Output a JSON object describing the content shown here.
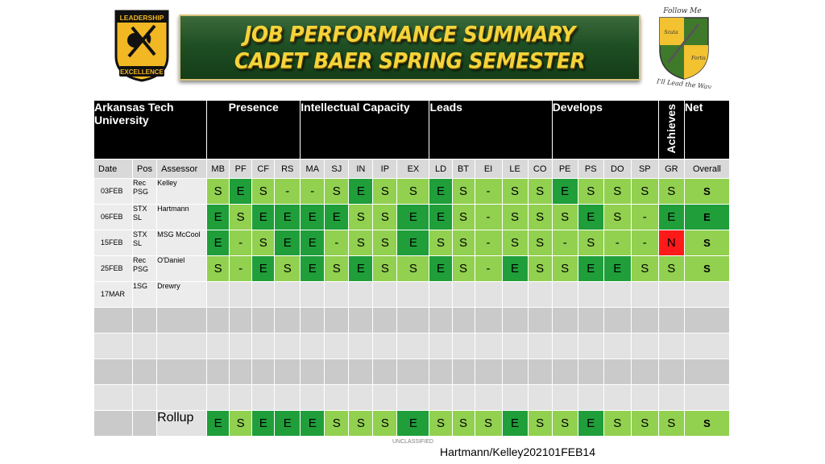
{
  "banner": {
    "line1": "JOB PERFORMANCE SUMMARY",
    "line2": "CADET BAER SPRING SEMESTER"
  },
  "logo_left": {
    "top_text": "LEADERSHIP",
    "bottom_text": "EXCELLENCE",
    "colors": {
      "black": "#111111",
      "gold": "#f2b823"
    }
  },
  "logo_right": {
    "top_text": "Follow Me",
    "bottom_text": "I'll Lead the Way",
    "left_text": "Scuta",
    "right_text": "Fortis",
    "colors": {
      "green": "#3f7a2a",
      "gold": "#f2c230"
    }
  },
  "header": {
    "org": "Arkansas Tech University",
    "presence": "Presence",
    "intellectual": "Intellectual Capacity",
    "leads": "Leads",
    "develops": "Develops",
    "achieves": "Achieves",
    "net": "Net"
  },
  "columns": {
    "date": "Date",
    "pos": "Pos",
    "assessor": "Assessor",
    "codes": [
      "MB",
      "PF",
      "CF",
      "RS",
      "MA",
      "SJ",
      "IN",
      "IP",
      "EX",
      "LD",
      "BT",
      "EI",
      "LE",
      "CO",
      "PE",
      "PS",
      "DO",
      "SP",
      "GR"
    ],
    "overall": "Overall"
  },
  "rows": [
    {
      "date": "03FEB",
      "pos": "Rec PSG",
      "assessor": "Kelley",
      "scores": [
        "S",
        "E",
        "S",
        "-",
        "-",
        "S",
        "E",
        "S",
        "S",
        "E",
        "S",
        "-",
        "S",
        "S",
        "E",
        "S",
        "S",
        "S",
        "S"
      ],
      "net": "S"
    },
    {
      "date": "06FEB",
      "pos": "STX SL",
      "assessor": "Hartmann",
      "scores": [
        "E",
        "S",
        "E",
        "E",
        "E",
        "E",
        "S",
        "S",
        "E",
        "E",
        "S",
        "-",
        "S",
        "S",
        "S",
        "E",
        "S",
        "-",
        "E"
      ],
      "net": "E"
    },
    {
      "date": "15FEB",
      "pos": "STX SL",
      "assessor": "MSG McCool",
      "scores": [
        "E",
        "-",
        "S",
        "E",
        "E",
        "-",
        "S",
        "S",
        "E",
        "S",
        "S",
        "-",
        "S",
        "S",
        "-",
        "S",
        "-",
        "-",
        "N"
      ],
      "net": "S"
    },
    {
      "date": "25FEB",
      "pos": "Rec PSG",
      "assessor": "O'Daniel",
      "scores": [
        "S",
        "-",
        "E",
        "S",
        "E",
        "S",
        "E",
        "S",
        "S",
        "E",
        "S",
        "-",
        "E",
        "S",
        "S",
        "E",
        "E",
        "S",
        "S"
      ],
      "net": "S"
    },
    {
      "date": "17MAR",
      "pos": "1SG",
      "assessor": "Drewry",
      "scores": [
        "",
        "",
        "",
        "",
        "",
        "",
        "",
        "",
        "",
        "",
        "",
        "",
        "",
        "",
        "",
        "",
        "",
        "",
        ""
      ],
      "net": ""
    }
  ],
  "rollup": {
    "label": "Rollup",
    "scores": [
      "E",
      "S",
      "E",
      "E",
      "E",
      "S",
      "S",
      "S",
      "E",
      "S",
      "S",
      "S",
      "E",
      "S",
      "S",
      "E",
      "S",
      "S",
      "S"
    ],
    "net": "S"
  },
  "colors": {
    "excellent": "#1f9e3a",
    "satisfactory": "#92d050",
    "needs_improvement": "#ff1a1a",
    "header_bg": "#000000",
    "banner_green": "#1f4f24",
    "banner_text": "#f5d33a"
  },
  "footer": {
    "classification": "UNCLASSIFIED",
    "reference": "Hartmann/Kelley202101FEB14"
  }
}
